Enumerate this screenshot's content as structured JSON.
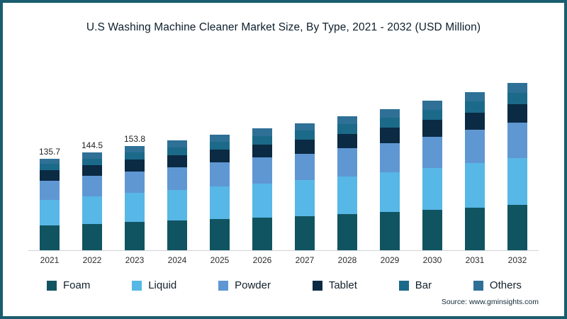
{
  "source": "Source: www.gminsights.com",
  "frame": {
    "border_color": "#1a5d6e",
    "background": "#ffffff"
  },
  "chart_data": {
    "type": "bar",
    "stacked": true,
    "title": "U.S Washing Machine Cleaner Market Size, By Type, 2021 - 2032 (USD Million)",
    "xlabel": "",
    "ylabel": "USD Million",
    "ylim": [
      0,
      262
    ],
    "grid": false,
    "legend_position": "bottom",
    "baseline_color": "#cfd4d8",
    "categories": [
      "2021",
      "2022",
      "2023",
      "2024",
      "2025",
      "2026",
      "2027",
      "2028",
      "2029",
      "2030",
      "2031",
      "2032"
    ],
    "totals": [
      135.7,
      144.5,
      153.8,
      162,
      171,
      180,
      188,
      198,
      209,
      221,
      234,
      248
    ],
    "value_labels": [
      "135.7",
      "144.5",
      "153.8",
      null,
      null,
      null,
      null,
      null,
      null,
      null,
      null,
      null
    ],
    "series": [
      {
        "name": "Foam",
        "color": "#115461",
        "values": [
          36.6,
          39.0,
          41.5,
          43.7,
          46.2,
          48.6,
          50.8,
          53.5,
          56.4,
          59.7,
          63.2,
          67.0
        ]
      },
      {
        "name": "Liquid",
        "color": "#57b7e6",
        "values": [
          38.0,
          40.5,
          43.1,
          45.4,
          47.9,
          50.4,
          52.6,
          55.4,
          58.5,
          61.9,
          65.5,
          69.4
        ]
      },
      {
        "name": "Powder",
        "color": "#5f97d3",
        "values": [
          28.5,
          30.3,
          32.3,
          34.0,
          35.9,
          37.8,
          39.5,
          41.6,
          43.9,
          46.4,
          49.1,
          52.1
        ]
      },
      {
        "name": "Tablet",
        "color": "#0b2a43",
        "values": [
          14.9,
          15.9,
          16.9,
          17.8,
          18.8,
          19.8,
          20.7,
          21.8,
          23.0,
          24.3,
          25.7,
          27.3
        ]
      },
      {
        "name": "Bar",
        "color": "#1b6a89",
        "values": [
          9.5,
          10.1,
          10.8,
          11.3,
          12.0,
          12.6,
          13.2,
          13.9,
          14.6,
          15.5,
          16.4,
          17.4
        ]
      },
      {
        "name": "Others",
        "color": "#2f7097",
        "values": [
          8.2,
          8.7,
          9.2,
          9.8,
          10.2,
          10.8,
          11.2,
          11.8,
          12.6,
          13.2,
          14.1,
          14.8
        ]
      }
    ]
  }
}
